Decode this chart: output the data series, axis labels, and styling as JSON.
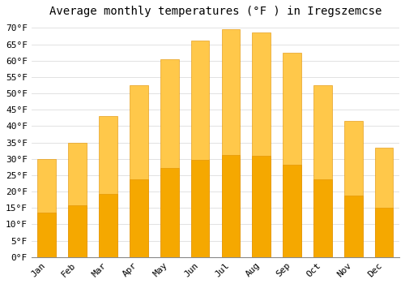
{
  "title": "Average monthly temperatures (°F ) in Iregszemcse",
  "months": [
    "Jan",
    "Feb",
    "Mar",
    "Apr",
    "May",
    "Jun",
    "Jul",
    "Aug",
    "Sep",
    "Oct",
    "Nov",
    "Dec"
  ],
  "values": [
    30,
    35,
    43,
    52.5,
    60.5,
    66,
    69.5,
    68.5,
    62.5,
    52.5,
    41.5,
    33.5
  ],
  "bar_color_top": "#FFC84A",
  "bar_color_bottom": "#F5A800",
  "bar_edge_color": "#E09000",
  "background_color": "#FFFFFF",
  "grid_color": "#DDDDDD",
  "ylim": [
    0,
    72
  ],
  "yticks": [
    0,
    5,
    10,
    15,
    20,
    25,
    30,
    35,
    40,
    45,
    50,
    55,
    60,
    65,
    70
  ],
  "title_fontsize": 10,
  "tick_fontsize": 8,
  "font_family": "monospace"
}
